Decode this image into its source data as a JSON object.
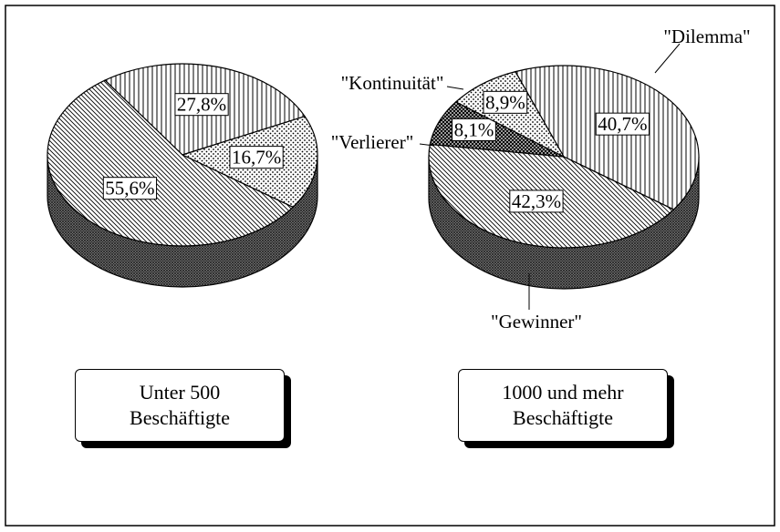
{
  "chart_data": [
    {
      "type": "pie",
      "title": "Unter 500 Beschäftigte",
      "categories": [
        null,
        null,
        null
      ],
      "values": [
        27.8,
        16.7,
        55.6
      ],
      "value_labels": [
        "27,8%",
        "16,7%",
        "55,6%"
      ]
    },
    {
      "type": "pie",
      "title": "1000 und mehr Beschäftigte",
      "categories": [
        "\"Dilemma\"",
        "\"Gewinner\"",
        "\"Verlierer\"",
        "\"Kontinuität\""
      ],
      "values": [
        40.7,
        42.3,
        8.1,
        8.9
      ],
      "value_labels": [
        "40,7%",
        "42,3%",
        "8,1%",
        "8,9%"
      ]
    }
  ]
}
